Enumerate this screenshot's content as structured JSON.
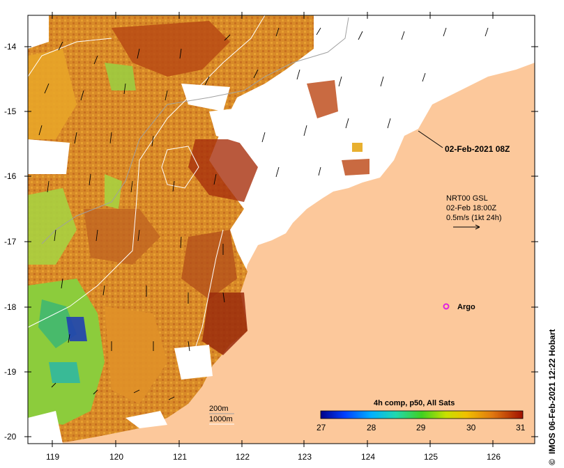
{
  "map": {
    "product_label": "02-Feb-2021 08Z",
    "current_source": "NRT00 GSL",
    "current_time": "02-Feb 18:00Z",
    "current_scale": "0.5m/s (1kt 24h)",
    "argo_label": "Argo",
    "isobath_labels": [
      "200m",
      "1000m"
    ],
    "credit": "IMOS 06-Feb-2021 12:22 Hobart",
    "colorbar": {
      "title": "4h comp, p50, All Sats",
      "ticks": [
        "27",
        "28",
        "29",
        "30",
        "31"
      ],
      "min": 27,
      "max": 31
    },
    "axes": {
      "lon_ticks": [
        "119",
        "120",
        "121",
        "122",
        "123",
        "124",
        "125",
        "126"
      ],
      "lat_ticks": [
        "-14",
        "-15",
        "-16",
        "-17",
        "-18",
        "-19",
        "-20"
      ],
      "lon_range": [
        118.7,
        126.7
      ],
      "lat_range": [
        -20.1,
        -13.5
      ]
    },
    "colors": {
      "land": "#fcc89b",
      "ocean_nodata": "#ffffff",
      "warm": "#c8641a",
      "hot": "#a8300c",
      "mid": "#e8a020",
      "cool": "#7ac83c",
      "cold": "#2a9ad8",
      "argo": "#e020e0"
    }
  }
}
